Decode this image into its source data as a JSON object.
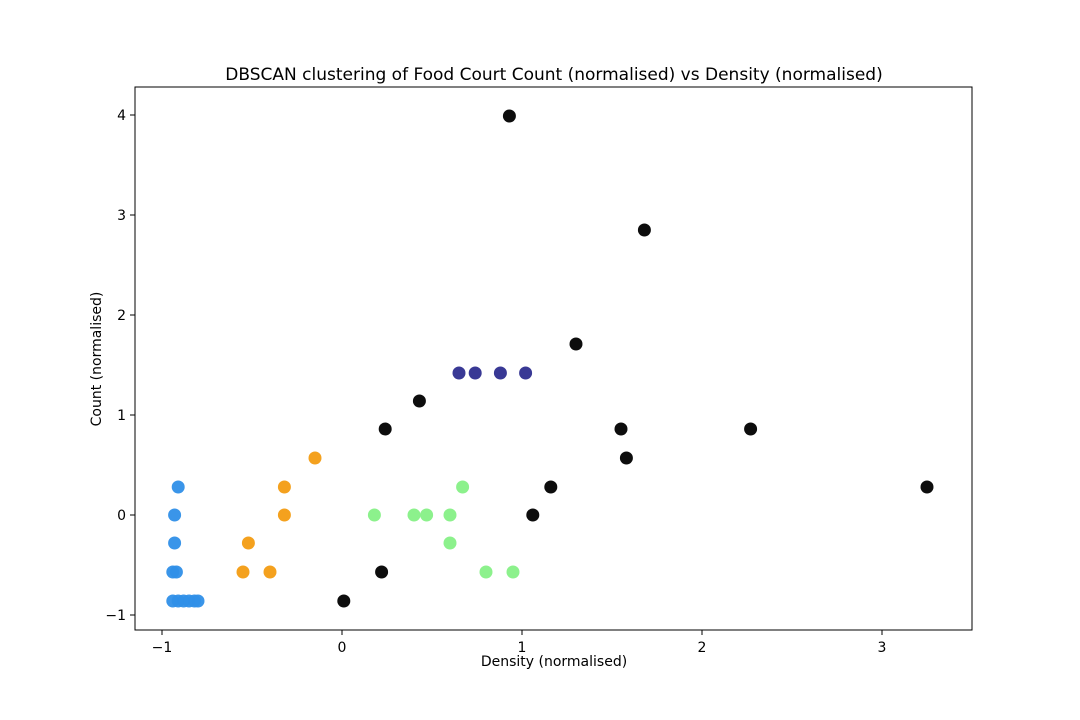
{
  "chart_data": {
    "type": "scatter",
    "title": "DBSCAN clustering of Food Court Count (normalised) vs Density (normalised)",
    "xlabel": "Density (normalised)",
    "ylabel": "Count (normalised)",
    "xlim": [
      -1.15,
      3.5
    ],
    "ylim": [
      -1.15,
      4.28
    ],
    "x_ticks": [
      {
        "v": -1,
        "label": "−1"
      },
      {
        "v": 0,
        "label": "0"
      },
      {
        "v": 1,
        "label": "1"
      },
      {
        "v": 2,
        "label": "2"
      },
      {
        "v": 3,
        "label": "3"
      }
    ],
    "y_ticks": [
      {
        "v": -1,
        "label": "−1"
      },
      {
        "v": 0,
        "label": "0"
      },
      {
        "v": 1,
        "label": "1"
      },
      {
        "v": 2,
        "label": "2"
      },
      {
        "v": 3,
        "label": "3"
      },
      {
        "v": 4,
        "label": "4"
      }
    ],
    "grid": false,
    "series": [
      {
        "color": "#000000",
        "points": [
          [
            0.93,
            3.99
          ],
          [
            1.68,
            2.85
          ],
          [
            1.3,
            1.71
          ],
          [
            0.43,
            1.14
          ],
          [
            0.24,
            0.86
          ],
          [
            1.55,
            0.86
          ],
          [
            2.27,
            0.86
          ],
          [
            1.58,
            0.57
          ],
          [
            1.16,
            0.28
          ],
          [
            3.25,
            0.28
          ],
          [
            1.06,
            0.0
          ],
          [
            0.22,
            -0.57
          ],
          [
            0.01,
            -0.86
          ]
        ]
      },
      {
        "color": "#2e2e8f",
        "points": [
          [
            0.65,
            1.42
          ],
          [
            0.74,
            1.42
          ],
          [
            0.88,
            1.42
          ],
          [
            1.02,
            1.42
          ]
        ]
      },
      {
        "color": "#f39c12",
        "points": [
          [
            -0.15,
            0.57
          ],
          [
            -0.32,
            0.28
          ],
          [
            -0.32,
            0.0
          ],
          [
            -0.52,
            -0.28
          ],
          [
            -0.55,
            -0.57
          ],
          [
            -0.4,
            -0.57
          ]
        ]
      },
      {
        "color": "#86f086",
        "points": [
          [
            0.67,
            0.28
          ],
          [
            0.18,
            0.0
          ],
          [
            0.4,
            0.0
          ],
          [
            0.47,
            0.0
          ],
          [
            0.6,
            0.0
          ],
          [
            0.6,
            -0.28
          ],
          [
            0.8,
            -0.57
          ],
          [
            0.95,
            -0.57
          ]
        ]
      },
      {
        "color": "#2f8fe8",
        "points": [
          [
            -0.91,
            0.28
          ],
          [
            -0.93,
            0.0
          ],
          [
            -0.93,
            -0.28
          ],
          [
            -0.94,
            -0.57
          ],
          [
            -0.92,
            -0.57
          ],
          [
            -0.94,
            -0.86
          ],
          [
            -0.91,
            -0.86
          ],
          [
            -0.88,
            -0.86
          ],
          [
            -0.85,
            -0.86
          ],
          [
            -0.82,
            -0.86
          ],
          [
            -0.8,
            -0.86
          ]
        ]
      }
    ]
  }
}
